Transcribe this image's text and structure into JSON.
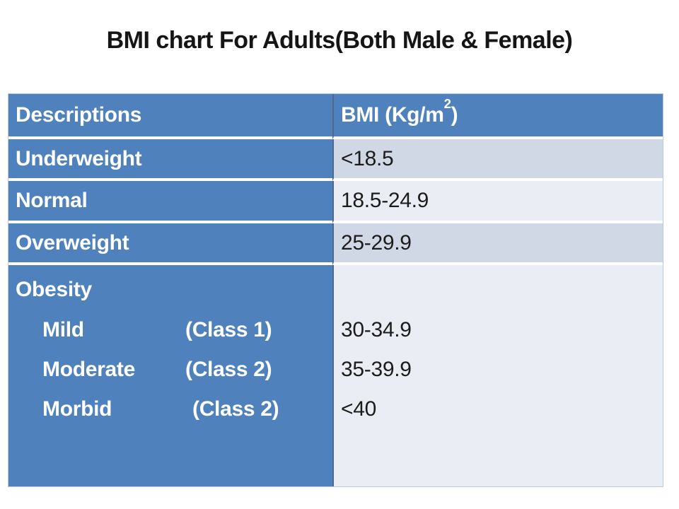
{
  "title": "BMI chart For Adults(Both Male & Female)",
  "colors": {
    "header_blue": "#4F81BD",
    "band_dark": "#D0D8E6",
    "band_light": "#EAEDF4",
    "header_text": "#FFFFFF",
    "body_text": "#1C1C1C"
  },
  "table": {
    "header": {
      "description": "Descriptions",
      "bmi_prefix": "BMI (Kg/m",
      "bmi_sup": "2",
      "bmi_close": ")"
    },
    "rows": [
      {
        "description": "Underweight",
        "bmi": "<18.5"
      },
      {
        "description": "Normal",
        "bmi": "18.5-24.9"
      },
      {
        "description": "Overweight",
        "bmi": "25-29.9"
      }
    ],
    "obesity": {
      "label": "Obesity",
      "subitems": [
        {
          "label": "Mild",
          "class": "(Class 1)",
          "bmi": "30-34.9"
        },
        {
          "label": "Moderate",
          "class": "(Class 2)",
          "bmi": "35-39.9"
        },
        {
          "label": "Morbid",
          "class": "(Class 2)",
          "bmi": "<40"
        }
      ]
    }
  }
}
